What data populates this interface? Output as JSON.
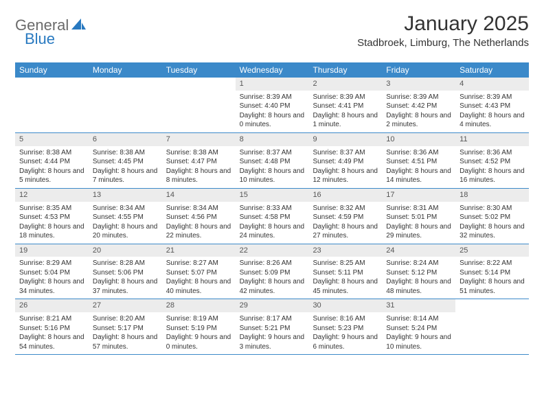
{
  "branding": {
    "logo_word1": "General",
    "logo_word2": "Blue",
    "logo_color1": "#6a6a6a",
    "logo_color2": "#2879c0"
  },
  "header": {
    "month_title": "January 2025",
    "location": "Stadbroek, Limburg, The Netherlands"
  },
  "style": {
    "weekday_bg": "#3b89c9",
    "weekday_fg": "#ffffff",
    "daynum_bg": "#ececec",
    "row_border": "#3b89c9",
    "body_fontsize": 10,
    "weekday_fontsize": 12,
    "title_fontsize": 30,
    "location_fontsize": 15
  },
  "weekdays": [
    "Sunday",
    "Monday",
    "Tuesday",
    "Wednesday",
    "Thursday",
    "Friday",
    "Saturday"
  ],
  "weeks": [
    [
      {
        "n": "",
        "sr": "",
        "ss": "",
        "dl": ""
      },
      {
        "n": "",
        "sr": "",
        "ss": "",
        "dl": ""
      },
      {
        "n": "",
        "sr": "",
        "ss": "",
        "dl": ""
      },
      {
        "n": "1",
        "sr": "Sunrise: 8:39 AM",
        "ss": "Sunset: 4:40 PM",
        "dl": "Daylight: 8 hours and 0 minutes."
      },
      {
        "n": "2",
        "sr": "Sunrise: 8:39 AM",
        "ss": "Sunset: 4:41 PM",
        "dl": "Daylight: 8 hours and 1 minute."
      },
      {
        "n": "3",
        "sr": "Sunrise: 8:39 AM",
        "ss": "Sunset: 4:42 PM",
        "dl": "Daylight: 8 hours and 2 minutes."
      },
      {
        "n": "4",
        "sr": "Sunrise: 8:39 AM",
        "ss": "Sunset: 4:43 PM",
        "dl": "Daylight: 8 hours and 4 minutes."
      }
    ],
    [
      {
        "n": "5",
        "sr": "Sunrise: 8:38 AM",
        "ss": "Sunset: 4:44 PM",
        "dl": "Daylight: 8 hours and 5 minutes."
      },
      {
        "n": "6",
        "sr": "Sunrise: 8:38 AM",
        "ss": "Sunset: 4:45 PM",
        "dl": "Daylight: 8 hours and 7 minutes."
      },
      {
        "n": "7",
        "sr": "Sunrise: 8:38 AM",
        "ss": "Sunset: 4:47 PM",
        "dl": "Daylight: 8 hours and 8 minutes."
      },
      {
        "n": "8",
        "sr": "Sunrise: 8:37 AM",
        "ss": "Sunset: 4:48 PM",
        "dl": "Daylight: 8 hours and 10 minutes."
      },
      {
        "n": "9",
        "sr": "Sunrise: 8:37 AM",
        "ss": "Sunset: 4:49 PM",
        "dl": "Daylight: 8 hours and 12 minutes."
      },
      {
        "n": "10",
        "sr": "Sunrise: 8:36 AM",
        "ss": "Sunset: 4:51 PM",
        "dl": "Daylight: 8 hours and 14 minutes."
      },
      {
        "n": "11",
        "sr": "Sunrise: 8:36 AM",
        "ss": "Sunset: 4:52 PM",
        "dl": "Daylight: 8 hours and 16 minutes."
      }
    ],
    [
      {
        "n": "12",
        "sr": "Sunrise: 8:35 AM",
        "ss": "Sunset: 4:53 PM",
        "dl": "Daylight: 8 hours and 18 minutes."
      },
      {
        "n": "13",
        "sr": "Sunrise: 8:34 AM",
        "ss": "Sunset: 4:55 PM",
        "dl": "Daylight: 8 hours and 20 minutes."
      },
      {
        "n": "14",
        "sr": "Sunrise: 8:34 AM",
        "ss": "Sunset: 4:56 PM",
        "dl": "Daylight: 8 hours and 22 minutes."
      },
      {
        "n": "15",
        "sr": "Sunrise: 8:33 AM",
        "ss": "Sunset: 4:58 PM",
        "dl": "Daylight: 8 hours and 24 minutes."
      },
      {
        "n": "16",
        "sr": "Sunrise: 8:32 AM",
        "ss": "Sunset: 4:59 PM",
        "dl": "Daylight: 8 hours and 27 minutes."
      },
      {
        "n": "17",
        "sr": "Sunrise: 8:31 AM",
        "ss": "Sunset: 5:01 PM",
        "dl": "Daylight: 8 hours and 29 minutes."
      },
      {
        "n": "18",
        "sr": "Sunrise: 8:30 AM",
        "ss": "Sunset: 5:02 PM",
        "dl": "Daylight: 8 hours and 32 minutes."
      }
    ],
    [
      {
        "n": "19",
        "sr": "Sunrise: 8:29 AM",
        "ss": "Sunset: 5:04 PM",
        "dl": "Daylight: 8 hours and 34 minutes."
      },
      {
        "n": "20",
        "sr": "Sunrise: 8:28 AM",
        "ss": "Sunset: 5:06 PM",
        "dl": "Daylight: 8 hours and 37 minutes."
      },
      {
        "n": "21",
        "sr": "Sunrise: 8:27 AM",
        "ss": "Sunset: 5:07 PM",
        "dl": "Daylight: 8 hours and 40 minutes."
      },
      {
        "n": "22",
        "sr": "Sunrise: 8:26 AM",
        "ss": "Sunset: 5:09 PM",
        "dl": "Daylight: 8 hours and 42 minutes."
      },
      {
        "n": "23",
        "sr": "Sunrise: 8:25 AM",
        "ss": "Sunset: 5:11 PM",
        "dl": "Daylight: 8 hours and 45 minutes."
      },
      {
        "n": "24",
        "sr": "Sunrise: 8:24 AM",
        "ss": "Sunset: 5:12 PM",
        "dl": "Daylight: 8 hours and 48 minutes."
      },
      {
        "n": "25",
        "sr": "Sunrise: 8:22 AM",
        "ss": "Sunset: 5:14 PM",
        "dl": "Daylight: 8 hours and 51 minutes."
      }
    ],
    [
      {
        "n": "26",
        "sr": "Sunrise: 8:21 AM",
        "ss": "Sunset: 5:16 PM",
        "dl": "Daylight: 8 hours and 54 minutes."
      },
      {
        "n": "27",
        "sr": "Sunrise: 8:20 AM",
        "ss": "Sunset: 5:17 PM",
        "dl": "Daylight: 8 hours and 57 minutes."
      },
      {
        "n": "28",
        "sr": "Sunrise: 8:19 AM",
        "ss": "Sunset: 5:19 PM",
        "dl": "Daylight: 9 hours and 0 minutes."
      },
      {
        "n": "29",
        "sr": "Sunrise: 8:17 AM",
        "ss": "Sunset: 5:21 PM",
        "dl": "Daylight: 9 hours and 3 minutes."
      },
      {
        "n": "30",
        "sr": "Sunrise: 8:16 AM",
        "ss": "Sunset: 5:23 PM",
        "dl": "Daylight: 9 hours and 6 minutes."
      },
      {
        "n": "31",
        "sr": "Sunrise: 8:14 AM",
        "ss": "Sunset: 5:24 PM",
        "dl": "Daylight: 9 hours and 10 minutes."
      },
      {
        "n": "",
        "sr": "",
        "ss": "",
        "dl": ""
      }
    ]
  ]
}
